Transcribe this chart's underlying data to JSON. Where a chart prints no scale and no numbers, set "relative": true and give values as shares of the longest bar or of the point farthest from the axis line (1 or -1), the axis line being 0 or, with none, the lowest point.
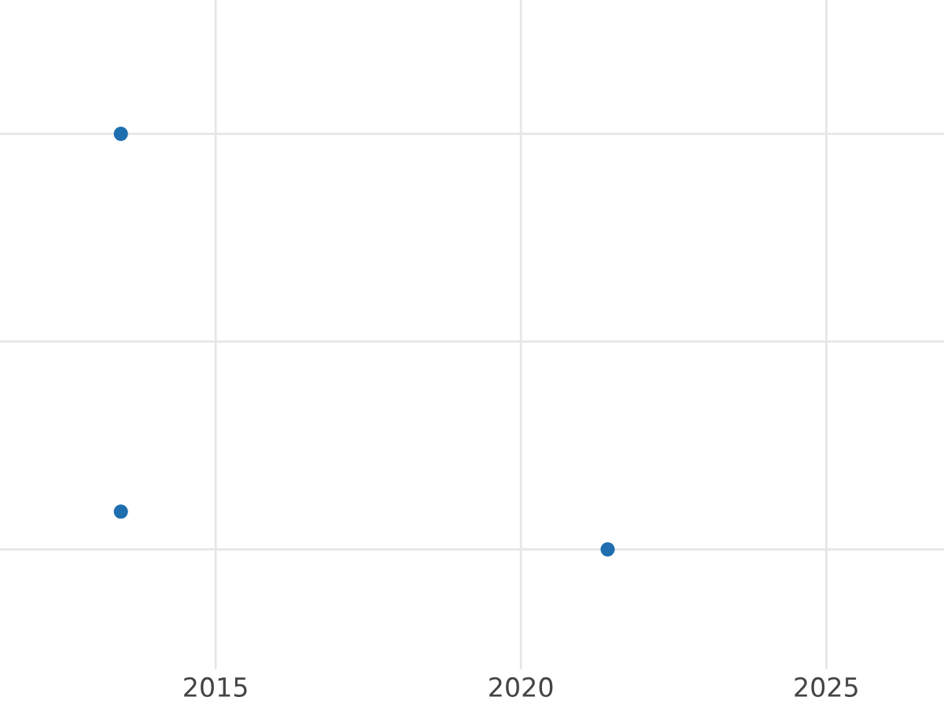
{
  "chart_data": {
    "type": "scatter",
    "relative": true,
    "x": [
      "2013-06-13",
      "2013-06-13",
      "2021-06-03"
    ],
    "values": [
      1,
      0.091,
      0
    ],
    "color": "#1f6eb0",
    "marker": "circle",
    "xlim": [
      "2011-06-21",
      "2026-12-06"
    ],
    "xticks": [
      "2015",
      "2020",
      "2025"
    ],
    "grid": true,
    "tick_labels": "x"
  }
}
